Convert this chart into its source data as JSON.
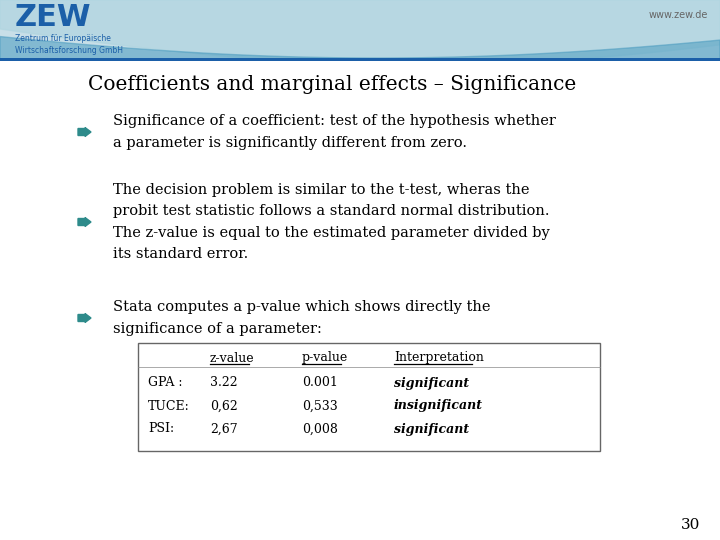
{
  "title": "Coefficients and marginal effects – Significance",
  "title_fontsize": 16,
  "bullet_color": "#2E8B8B",
  "text_color": "#000000",
  "background_color": "#FFFFFF",
  "bullets": [
    "Significance of a coefficient: test of the hypothesis whether\na parameter is significantly different from zero.",
    "The decision problem is similar to the t-test, wheras the\nprobit test statistic follows a standard normal distribution.\nThe z-value is equal to the estimated parameter divided by\nits standard error.",
    "Stata computes a p-value which shows directly the\nsignificance of a parameter:"
  ],
  "table_headers": [
    "",
    "z-value",
    "p-value",
    "Interpretation"
  ],
  "table_rows": [
    [
      "GPA :",
      "3.22",
      "0.001",
      "significant"
    ],
    [
      "TUCE:",
      "0,62",
      "0,533",
      "insignificant"
    ],
    [
      "PSI:",
      "2,67",
      "0,008",
      "significant"
    ]
  ],
  "page_number": "30",
  "arrow_color": "#2E8B8B",
  "www_text": "www.zew.de",
  "zew_text": "ZEW",
  "zew_subtitle": "Zentrum für Europäische\nWirtschaftsforschung GmbH"
}
